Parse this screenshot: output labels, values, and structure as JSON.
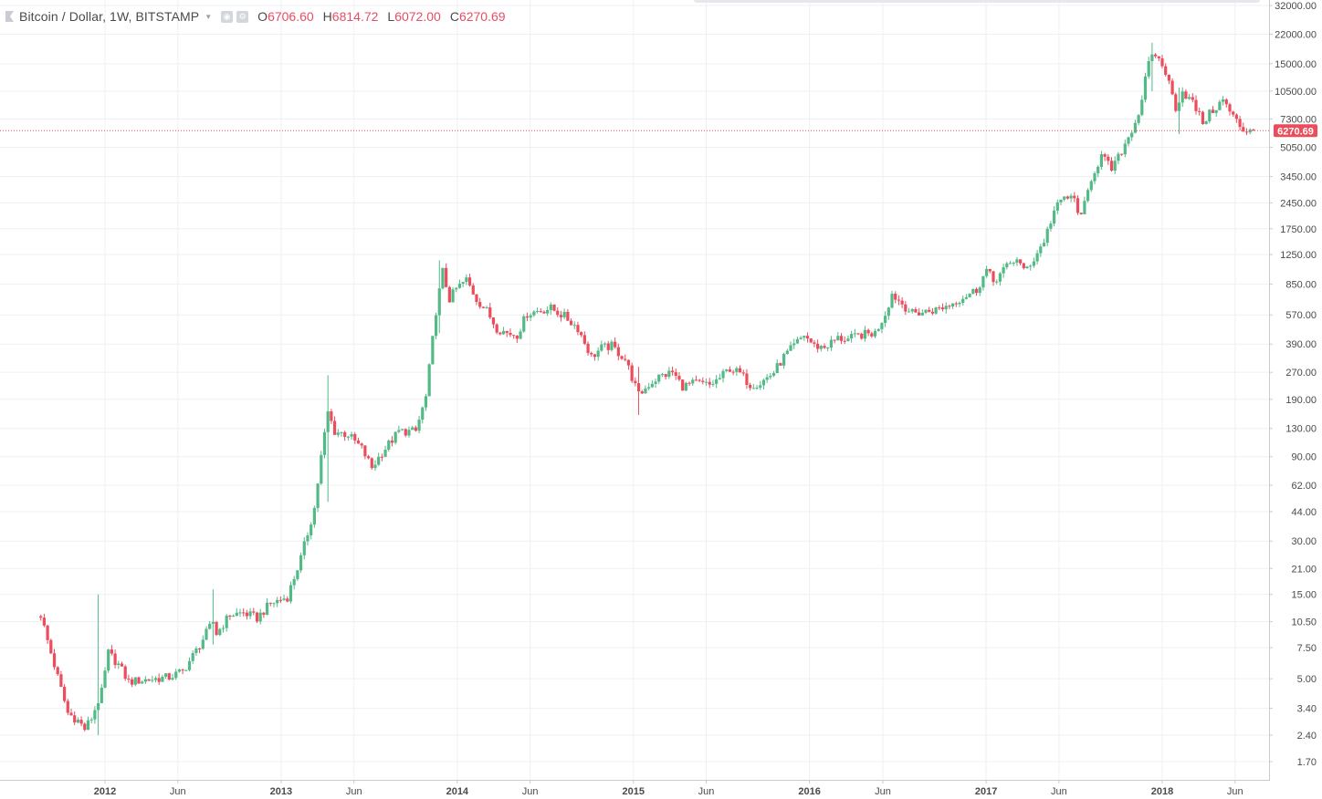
{
  "legend": {
    "symbol_icon": "series-marker-icon",
    "title": "Bitcoin / Dollar, 1W, BITSTAMP",
    "caret_icon": "chevron-down-icon",
    "visibility_icon": "eye-icon",
    "settings_icon": "gear-icon",
    "o_label": "O",
    "o_value": "6706.60",
    "h_label": "H",
    "h_value": "6814.72",
    "l_label": "L",
    "l_value": "6072.00",
    "c_label": "C",
    "c_value": "6270.69"
  },
  "price_label": "6270.69",
  "colors": {
    "up": "#53b987",
    "down": "#eb4d5c",
    "grid": "#eef0f3",
    "axis_text": "#4a4a4a",
    "price_line": "#eb4d5c"
  },
  "chart_data": {
    "type": "candlestick",
    "title": "Bitcoin / Dollar, 1W, BITSTAMP",
    "y_scale": "log",
    "y_ticks": [
      "32000.00",
      "22000.00",
      "15000.00",
      "10500.00",
      "7300.00",
      "5050.00",
      "3450.00",
      "2450.00",
      "1750.00",
      "1250.00",
      "850.00",
      "570.00",
      "390.00",
      "270.00",
      "190.00",
      "130.00",
      "90.00",
      "62.00",
      "44.00",
      "30.00",
      "21.00",
      "15.00",
      "10.50",
      "7.50",
      "5.00",
      "3.40",
      "2.40",
      "1.70"
    ],
    "x_ticks": [
      "2012",
      "Jun",
      "2013",
      "Jun",
      "2014",
      "Jun",
      "2015",
      "Jun",
      "2016",
      "Jun",
      "2017",
      "Jun",
      "2018",
      "Jun"
    ],
    "last_close": 6270.69,
    "x_range": [
      "2011-08-15",
      "2018-07-30"
    ],
    "close_path": [
      [
        "2011-08-22",
        11.5
      ],
      [
        "2011-09-05",
        8.2
      ],
      [
        "2011-09-26",
        5.1
      ],
      [
        "2011-10-17",
        3.2
      ],
      [
        "2011-11-07",
        2.9
      ],
      [
        "2011-11-21",
        2.6
      ],
      [
        "2011-12-05",
        3.0
      ],
      [
        "2011-12-26",
        4.2
      ],
      [
        "2012-01-09",
        7.0
      ],
      [
        "2012-01-30",
        6.0
      ],
      [
        "2012-02-20",
        4.8
      ],
      [
        "2012-03-19",
        4.9
      ],
      [
        "2012-04-16",
        5.0
      ],
      [
        "2012-05-14",
        5.1
      ],
      [
        "2012-06-11",
        5.5
      ],
      [
        "2012-07-09",
        7.2
      ],
      [
        "2012-08-13",
        10.5
      ],
      [
        "2012-08-20",
        9.0
      ],
      [
        "2012-09-17",
        11.5
      ],
      [
        "2012-10-15",
        11.8
      ],
      [
        "2012-11-12",
        11.0
      ],
      [
        "2012-12-10",
        13.3
      ],
      [
        "2013-01-14",
        14.5
      ],
      [
        "2013-02-11",
        24
      ],
      [
        "2013-03-11",
        46
      ],
      [
        "2013-03-25",
        90
      ],
      [
        "2013-04-08",
        160
      ],
      [
        "2013-04-22",
        125
      ],
      [
        "2013-05-20",
        120
      ],
      [
        "2013-06-17",
        100
      ],
      [
        "2013-07-08",
        78
      ],
      [
        "2013-07-29",
        95
      ],
      [
        "2013-09-02",
        125
      ],
      [
        "2013-10-07",
        125
      ],
      [
        "2013-10-28",
        195
      ],
      [
        "2013-11-18",
        600
      ],
      [
        "2013-12-02",
        1000
      ],
      [
        "2013-12-16",
        700
      ],
      [
        "2013-12-30",
        800
      ],
      [
        "2014-01-20",
        900
      ],
      [
        "2014-02-10",
        700
      ],
      [
        "2014-03-03",
        600
      ],
      [
        "2014-03-24",
        480
      ],
      [
        "2014-04-14",
        450
      ],
      [
        "2014-05-05",
        440
      ],
      [
        "2014-05-26",
        580
      ],
      [
        "2014-06-16",
        600
      ],
      [
        "2014-07-14",
        620
      ],
      [
        "2014-08-11",
        560
      ],
      [
        "2014-09-08",
        480
      ],
      [
        "2014-10-06",
        330
      ],
      [
        "2014-10-27",
        370
      ],
      [
        "2014-11-17",
        380
      ],
      [
        "2014-12-15",
        320
      ],
      [
        "2015-01-12",
        200
      ],
      [
        "2015-02-02",
        230
      ],
      [
        "2015-02-23",
        255
      ],
      [
        "2015-03-23",
        270
      ],
      [
        "2015-04-13",
        225
      ],
      [
        "2015-05-11",
        235
      ],
      [
        "2015-06-08",
        228
      ],
      [
        "2015-06-29",
        250
      ],
      [
        "2015-07-20",
        285
      ],
      [
        "2015-08-10",
        265
      ],
      [
        "2015-08-31",
        230
      ],
      [
        "2015-09-21",
        235
      ],
      [
        "2015-10-19",
        270
      ],
      [
        "2015-11-09",
        330
      ],
      [
        "2015-11-30",
        380
      ],
      [
        "2015-12-21",
        440
      ],
      [
        "2016-01-11",
        380
      ],
      [
        "2016-02-01",
        375
      ],
      [
        "2016-02-29",
        420
      ],
      [
        "2016-03-21",
        415
      ],
      [
        "2016-04-18",
        440
      ],
      [
        "2016-05-16",
        450
      ],
      [
        "2016-06-06",
        580
      ],
      [
        "2016-06-20",
        750
      ],
      [
        "2016-07-11",
        660
      ],
      [
        "2016-08-01",
        580
      ],
      [
        "2016-08-22",
        590
      ],
      [
        "2016-09-19",
        610
      ],
      [
        "2016-10-17",
        650
      ],
      [
        "2016-11-14",
        720
      ],
      [
        "2016-12-12",
        790
      ],
      [
        "2017-01-02",
        1020
      ],
      [
        "2017-01-16",
        880
      ],
      [
        "2017-02-06",
        1020
      ],
      [
        "2017-03-06",
        1200
      ],
      [
        "2017-03-20",
        1000
      ],
      [
        "2017-04-10",
        1180
      ],
      [
        "2017-05-01",
        1500
      ],
      [
        "2017-05-22",
        2200
      ],
      [
        "2017-06-12",
        2650
      ],
      [
        "2017-07-03",
        2550
      ],
      [
        "2017-07-17",
        2000
      ],
      [
        "2017-08-07",
        3400
      ],
      [
        "2017-08-28",
        4500
      ],
      [
        "2017-09-18",
        3800
      ],
      [
        "2017-10-02",
        4400
      ],
      [
        "2017-10-23",
        5800
      ],
      [
        "2017-11-13",
        7800
      ],
      [
        "2017-12-04",
        15000
      ],
      [
        "2017-12-18",
        17000
      ],
      [
        "2018-01-08",
        13500
      ],
      [
        "2018-01-29",
        8500
      ],
      [
        "2018-02-12",
        10500
      ],
      [
        "2018-03-05",
        9000
      ],
      [
        "2018-03-26",
        7000
      ],
      [
        "2018-04-16",
        8200
      ],
      [
        "2018-05-07",
        9300
      ],
      [
        "2018-05-28",
        7500
      ],
      [
        "2018-06-18",
        6300
      ],
      [
        "2018-07-02",
        6400
      ],
      [
        "2018-07-09",
        6270.69
      ]
    ],
    "spikes": [
      [
        "2011-12-19",
        2.4,
        15.0
      ],
      [
        "2012-08-13",
        7.8,
        16.0
      ],
      [
        "2013-04-08",
        50,
        260
      ],
      [
        "2013-11-25",
        450,
        1160
      ],
      [
        "2015-01-12",
        155,
        290
      ],
      [
        "2017-12-11",
        10500,
        19700
      ],
      [
        "2018-02-05",
        6000,
        11000
      ]
    ]
  }
}
